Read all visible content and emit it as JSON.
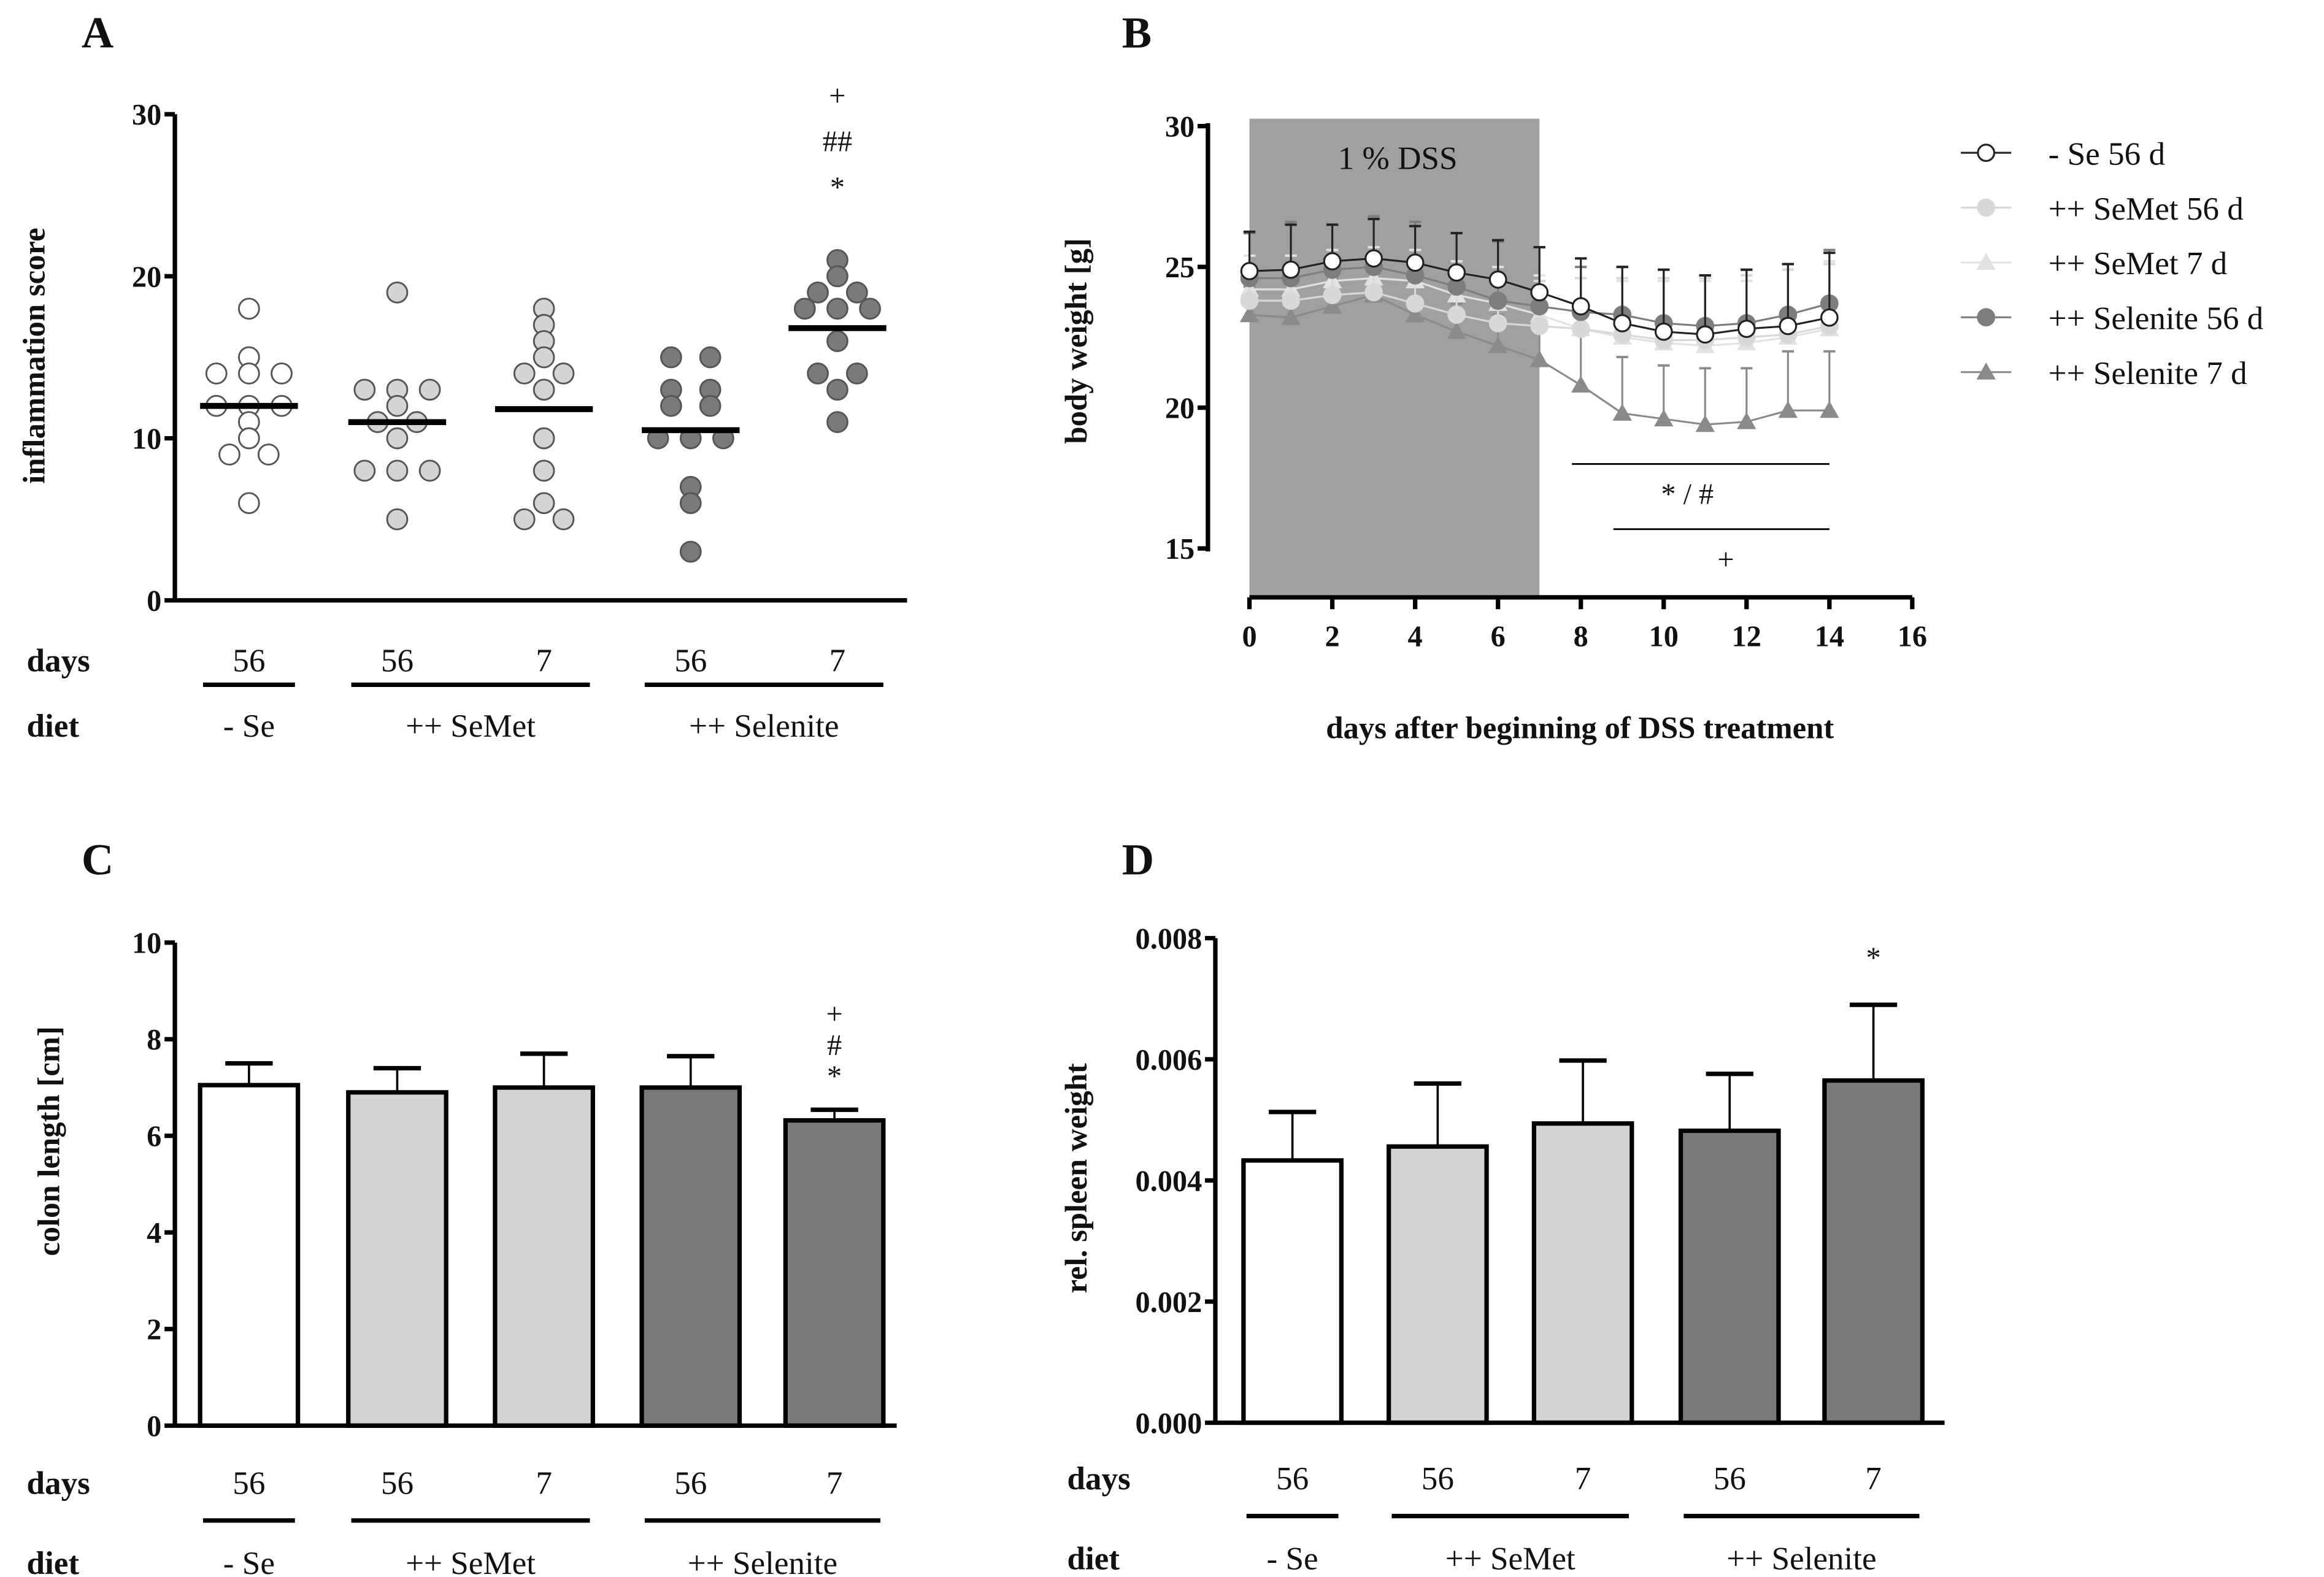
{
  "row_labels": {
    "days": "days",
    "diet": "diet"
  },
  "chart_data": [
    {
      "panel": "A",
      "type": "scatter",
      "ylabel": "inflammation score",
      "ylim": [
        0,
        30
      ],
      "yticks": [
        "0",
        "10",
        "20",
        "30"
      ],
      "groups": [
        {
          "days": "56",
          "fill": "#ffffff",
          "values": [
            18,
            15,
            14,
            14,
            14,
            12,
            12,
            12,
            11,
            10,
            9,
            9,
            6
          ],
          "mean": 12.0,
          "annotations": []
        },
        {
          "days": "56",
          "fill": "#d4d4d4",
          "values": [
            19,
            13,
            13,
            13,
            12,
            11,
            11,
            10,
            8,
            8,
            8,
            5
          ],
          "mean": 11.0,
          "annotations": []
        },
        {
          "days": "7",
          "fill": "#d4d4d4",
          "values": [
            18,
            17,
            16,
            15,
            14,
            14,
            13,
            10,
            8,
            6,
            5,
            5
          ],
          "mean": 11.8,
          "annotations": []
        },
        {
          "days": "56",
          "fill": "#7a7a7a",
          "values": [
            15,
            15,
            13,
            13,
            12,
            12,
            10,
            10,
            10,
            7,
            6,
            3
          ],
          "mean": 10.5,
          "annotations": []
        },
        {
          "days": "7",
          "fill": "#7a7a7a",
          "values": [
            21,
            20,
            19,
            19,
            18,
            18,
            18,
            16,
            14,
            14,
            13,
            11
          ],
          "mean": 16.8,
          "annotations": [
            "+",
            "##",
            "*"
          ]
        }
      ],
      "diet_groups": [
        {
          "label": "- Se",
          "span": [
            0,
            0
          ]
        },
        {
          "label": "++ SeMet",
          "span": [
            1,
            2
          ]
        },
        {
          "label": "++ Selenite",
          "span": [
            3,
            4
          ]
        }
      ]
    },
    {
      "panel": "B",
      "type": "line",
      "xlabel": "days after beginning of DSS treatment",
      "ylabel": "body weight [g]",
      "xlim": [
        0,
        16
      ],
      "xticks": [
        "0",
        "2",
        "4",
        "6",
        "8",
        "10",
        "12",
        "14",
        "16"
      ],
      "ylim": [
        15,
        30
      ],
      "yticks": [
        "15",
        "20",
        "25",
        "30"
      ],
      "x": [
        0,
        1,
        2,
        3,
        4,
        5,
        6,
        7,
        8,
        9,
        10,
        11,
        12,
        13,
        14
      ],
      "shaded_region": {
        "label": "1 % DSS",
        "from": 0,
        "to": 7
      },
      "series": [
        {
          "name": "- Se 56 d",
          "marker": "circle-open",
          "color": "#222222",
          "fill": "#ffffff",
          "values": [
            24.85,
            24.9,
            25.2,
            25.3,
            25.15,
            24.8,
            24.55,
            24.1,
            23.6,
            23.0,
            22.7,
            22.6,
            22.8,
            22.9,
            23.2
          ],
          "sd": [
            1.4,
            1.6,
            1.3,
            1.4,
            1.3,
            1.4,
            1.4,
            1.6,
            1.7,
            2.0,
            2.2,
            2.1,
            2.1,
            2.2,
            2.3
          ]
        },
        {
          "name": "++ SeMet 56 d",
          "marker": "circle",
          "color": "#d8d8d8",
          "fill": "#d8d8d8",
          "values": [
            23.8,
            23.8,
            24.0,
            24.1,
            23.7,
            23.3,
            23.0,
            22.9,
            22.8,
            22.6,
            22.4,
            22.4,
            22.5,
            22.6,
            22.9
          ],
          "sd": [
            1.2,
            1.2,
            1.2,
            1.2,
            1.3,
            1.4,
            1.5,
            1.6,
            1.8,
            2.0,
            2.2,
            2.2,
            2.2,
            2.3,
            2.2
          ]
        },
        {
          "name": "++ SeMet 7 d",
          "marker": "triangle",
          "color": "#e2e2e2",
          "fill": "#e2e2e2",
          "values": [
            24.2,
            24.2,
            24.5,
            24.6,
            24.5,
            24.0,
            23.7,
            23.3,
            22.8,
            22.5,
            22.3,
            22.2,
            22.3,
            22.5,
            22.8
          ],
          "sd": [
            1.2,
            1.2,
            1.1,
            1.1,
            1.1,
            1.2,
            1.3,
            1.4,
            1.8,
            2.0,
            2.2,
            2.3,
            2.2,
            2.4,
            2.4
          ]
        },
        {
          "name": "++ Selenite 56 d",
          "marker": "circle",
          "color": "#7d7d7d",
          "fill": "#7d7d7d",
          "values": [
            24.6,
            24.6,
            24.9,
            25.0,
            24.7,
            24.3,
            23.8,
            23.6,
            23.4,
            23.3,
            23.0,
            22.9,
            23.0,
            23.3,
            23.7
          ],
          "sd": [
            1.6,
            2.0,
            1.6,
            1.8,
            1.9,
            1.9,
            2.1,
            2.1,
            1.6,
            1.7,
            1.9,
            1.8,
            1.9,
            1.8,
            1.9
          ]
        },
        {
          "name": "++ Selenite 7 d",
          "marker": "triangle",
          "color": "#8a8a8a",
          "fill": "#8a8a8a",
          "values": [
            23.3,
            23.2,
            23.6,
            24.0,
            23.3,
            22.7,
            22.2,
            21.7,
            20.8,
            19.8,
            19.6,
            19.4,
            19.5,
            19.9,
            19.9
          ],
          "sd": [
            1.0,
            1.0,
            1.0,
            0.9,
            1.0,
            1.0,
            1.1,
            1.5,
            1.8,
            2.0,
            1.9,
            2.0,
            1.9,
            2.1,
            2.1
          ]
        }
      ],
      "legend": "right",
      "brackets": [
        {
          "label": "*   /   #",
          "from": 8,
          "to": 14
        },
        {
          "label": "+",
          "from": 9,
          "to": 14
        }
      ]
    },
    {
      "panel": "C",
      "type": "bar",
      "ylabel": "colon length [cm]",
      "ylim": [
        0,
        10
      ],
      "yticks": [
        "0",
        "2",
        "4",
        "6",
        "8",
        "10"
      ],
      "groups": [
        {
          "days": "56",
          "fill": "#ffffff",
          "value": 7.05,
          "error": 0.45,
          "annotations": []
        },
        {
          "days": "56",
          "fill": "#d4d4d4",
          "value": 6.9,
          "error": 0.5,
          "annotations": []
        },
        {
          "days": "7",
          "fill": "#d4d4d4",
          "value": 7.0,
          "error": 0.7,
          "annotations": []
        },
        {
          "days": "56",
          "fill": "#7a7a7a",
          "value": 7.0,
          "error": 0.65,
          "annotations": []
        },
        {
          "days": "7",
          "fill": "#7a7a7a",
          "value": 6.32,
          "error": 0.22,
          "annotations": [
            "+",
            "#",
            "*"
          ]
        }
      ],
      "diet_groups": [
        {
          "label": "- Se",
          "span": [
            0,
            0
          ]
        },
        {
          "label": "++ SeMet",
          "span": [
            1,
            2
          ]
        },
        {
          "label": "++ Selenite",
          "span": [
            3,
            4
          ]
        }
      ]
    },
    {
      "panel": "D",
      "type": "bar",
      "ylabel": "rel. spleen weight",
      "ylim": [
        0,
        0.008
      ],
      "yticks": [
        "0.000",
        "0.002",
        "0.004",
        "0.006",
        "0.008"
      ],
      "groups": [
        {
          "days": "56",
          "fill": "#ffffff",
          "value": 0.00433,
          "error": 0.0008,
          "annotations": []
        },
        {
          "days": "56",
          "fill": "#d4d4d4",
          "value": 0.00456,
          "error": 0.00104,
          "annotations": []
        },
        {
          "days": "7",
          "fill": "#d4d4d4",
          "value": 0.00494,
          "error": 0.00104,
          "annotations": []
        },
        {
          "days": "56",
          "fill": "#7a7a7a",
          "value": 0.00482,
          "error": 0.00094,
          "annotations": []
        },
        {
          "days": "7",
          "fill": "#7a7a7a",
          "value": 0.00565,
          "error": 0.00125,
          "annotations": [
            "*"
          ]
        }
      ],
      "diet_groups": [
        {
          "label": "- Se",
          "span": [
            0,
            0
          ]
        },
        {
          "label": "++ SeMet",
          "span": [
            1,
            2
          ]
        },
        {
          "label": "++ Selenite",
          "span": [
            3,
            4
          ]
        }
      ]
    }
  ]
}
